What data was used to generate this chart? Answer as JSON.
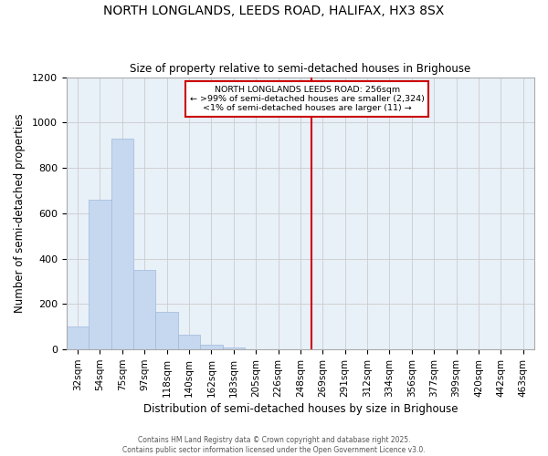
{
  "title": "NORTH LONGLANDS, LEEDS ROAD, HALIFAX, HX3 8SX",
  "subtitle": "Size of property relative to semi-detached houses in Brighouse",
  "xlabel": "Distribution of semi-detached houses by size in Brighouse",
  "ylabel": "Number of semi-detached properties",
  "categories": [
    "32sqm",
    "54sqm",
    "75sqm",
    "97sqm",
    "118sqm",
    "140sqm",
    "162sqm",
    "183sqm",
    "205sqm",
    "226sqm",
    "248sqm",
    "269sqm",
    "291sqm",
    "312sqm",
    "334sqm",
    "356sqm",
    "377sqm",
    "399sqm",
    "420sqm",
    "442sqm",
    "463sqm"
  ],
  "values": [
    100,
    660,
    930,
    350,
    165,
    65,
    20,
    10,
    0,
    0,
    0,
    0,
    0,
    0,
    0,
    0,
    0,
    0,
    0,
    0,
    0
  ],
  "bar_color": "#c5d8f0",
  "bar_edgecolor": "#a0b8d8",
  "vline_color": "#cc0000",
  "vline_x_index": 10,
  "annotation_title": "NORTH LONGLANDS LEEDS ROAD: 256sqm",
  "annotation_line1": "← >99% of semi-detached houses are smaller (2,324)",
  "annotation_line2": "<1% of semi-detached houses are larger (11) →",
  "annotation_box_color": "#ffffff",
  "annotation_border_color": "#cc0000",
  "ylim": [
    0,
    1200
  ],
  "yticks": [
    0,
    200,
    400,
    600,
    800,
    1000,
    1200
  ],
  "background_color": "#ffffff",
  "plot_bg": "#e8f0f8",
  "footer1": "Contains HM Land Registry data © Crown copyright and database right 2025.",
  "footer2": "Contains public sector information licensed under the Open Government Licence v3.0."
}
